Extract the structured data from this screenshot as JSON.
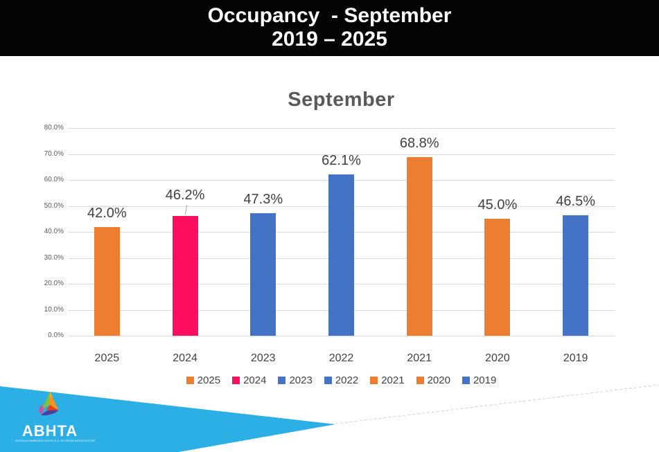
{
  "header": {
    "line1": "Occupancy  - September",
    "line2": "2019 – 2025"
  },
  "chart_data": {
    "type": "bar",
    "title": "September",
    "categories": [
      "2025",
      "2024",
      "2023",
      "2022",
      "2021",
      "2020",
      "2019"
    ],
    "values": [
      42.0,
      46.2,
      47.3,
      62.1,
      68.8,
      45.0,
      46.5
    ],
    "value_labels": [
      "42.0%",
      "46.2%",
      "47.3%",
      "62.1%",
      "68.8%",
      "45.0%",
      "46.5%"
    ],
    "colors": [
      "#ED7D31",
      "#FB0D60",
      "#4472C4",
      "#4472C4",
      "#ED7D31",
      "#ED7D31",
      "#4472C4"
    ],
    "xlabel": "",
    "ylabel": "",
    "ylim": [
      0,
      80
    ],
    "ytick_labels": [
      "0.0%",
      "10.0%",
      "20.0%",
      "30.0%",
      "40.0%",
      "50.0%",
      "60.0%",
      "70.0%",
      "80.0%"
    ],
    "grid": true,
    "legend_position": "bottom"
  },
  "footer": {
    "banner_color": "#2BAFE5",
    "logo_name": "ABHTA",
    "logo_tagline": "ANTIGUA BARBUDA HOTELS & TOURISM ASSOCIATION"
  }
}
